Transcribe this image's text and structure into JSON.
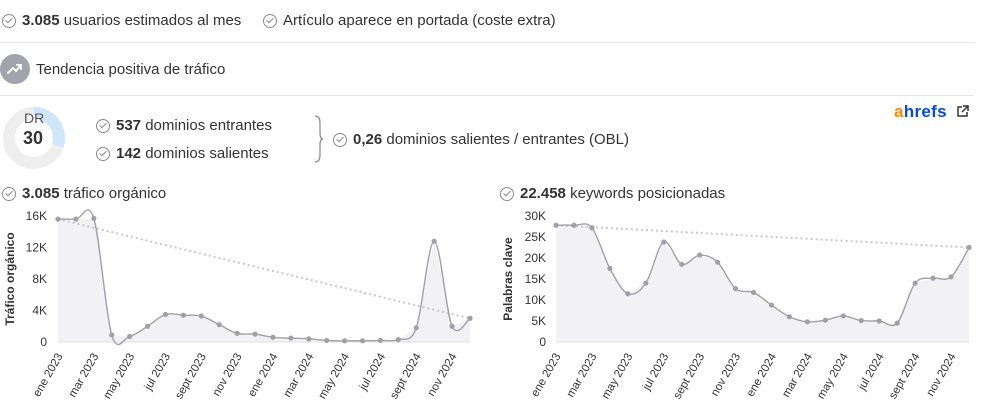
{
  "stats": {
    "users_value": "3.085",
    "users_label": "usuarios estimados al mes",
    "portada_label": "Artículo aparece en portada (coste extra)",
    "trend_label": "Tendencia positiva de tráfico"
  },
  "dr": {
    "label": "DR",
    "value": "30",
    "fill_fraction": 0.3
  },
  "domains": {
    "in_value": "537",
    "in_label": "dominios entrantes",
    "out_value": "142",
    "out_label": "dominios salientes",
    "obl_value": "0,26",
    "obl_label": "dominios salientes / entrantes (OBL)"
  },
  "brand": {
    "a": "a",
    "rest": "hrefs",
    "a_color": "#ff8800",
    "rest_color": "#054ada"
  },
  "colors": {
    "accent_light": "#cfe6fb",
    "line": "#a0a0a8",
    "area": "#f2f2f5",
    "trend": "#c8c8cc"
  },
  "charts": {
    "organic": {
      "value": "3.085",
      "label": "tráfico orgánico"
    },
    "keywords": {
      "value": "22.458",
      "label": "keywords posicionadas"
    }
  },
  "chart_data": [
    {
      "type": "area",
      "ylabel": "Tráfico orgánico",
      "yticks": [
        "16K",
        "12K",
        "8K",
        "4K",
        "0"
      ],
      "ytick_values": [
        16000,
        12000,
        8000,
        4000,
        0
      ],
      "ylim": [
        0,
        16000
      ],
      "xtick_labels": [
        "ene 2023",
        "mar 2023",
        "may 2023",
        "jul 2023",
        "sept 2023",
        "nov 2023",
        "ene 2024",
        "mar 2024",
        "may 2024",
        "jul 2024",
        "sept 2024",
        "nov 2024"
      ],
      "values": [
        15600,
        15600,
        15700,
        900,
        700,
        2000,
        3500,
        3400,
        3300,
        2200,
        1100,
        1000,
        600,
        500,
        400,
        200,
        150,
        150,
        200,
        300,
        1800,
        12800,
        2000,
        3000
      ],
      "trend": [
        15600,
        3000
      ],
      "grid": false
    },
    {
      "type": "area",
      "ylabel": "Palabras clave",
      "yticks": [
        "30K",
        "25K",
        "20K",
        "15K",
        "10K",
        "5K",
        "0"
      ],
      "ytick_values": [
        30000,
        25000,
        20000,
        15000,
        10000,
        5000,
        0
      ],
      "ylim": [
        0,
        30000
      ],
      "xtick_labels": [
        "ene 2023",
        "mar 2023",
        "may 2023",
        "jul 2023",
        "sept 2023",
        "nov 2023",
        "ene 2024",
        "mar 2024",
        "may 2024",
        "jul 2024",
        "sept 2024",
        "nov 2024"
      ],
      "values": [
        27800,
        27800,
        27200,
        17500,
        11500,
        14000,
        23800,
        18500,
        20700,
        19000,
        12700,
        11800,
        8800,
        6000,
        4800,
        5200,
        6200,
        5100,
        5000,
        4500,
        14000,
        15200,
        15500,
        22500
      ],
      "trend": [
        27800,
        22500
      ],
      "grid": false
    }
  ]
}
